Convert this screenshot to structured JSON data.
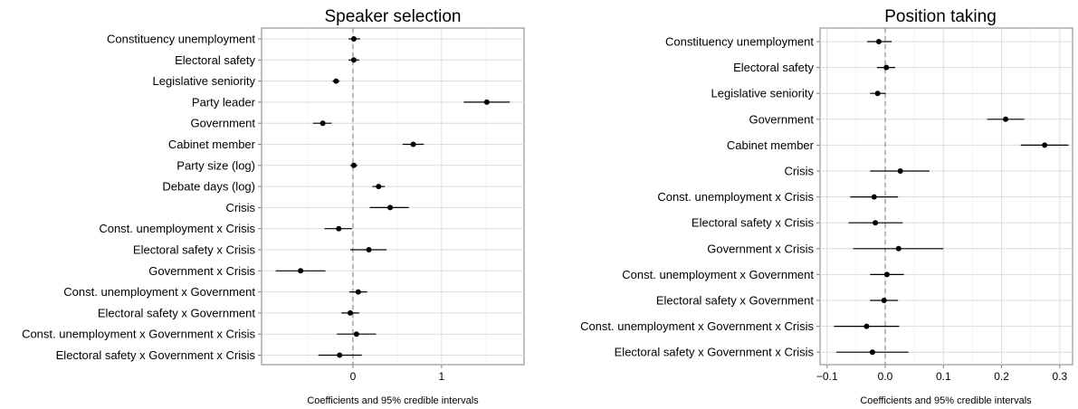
{
  "chart_data": [
    {
      "type": "scatter",
      "title": "Speaker selection",
      "xlabel": "Coefficients and 95% credible intervals",
      "ylabel": "",
      "xlim": [
        -1.03,
        1.93
      ],
      "xticks": [
        0,
        1
      ],
      "xtick_labels": [
        "0",
        "1"
      ],
      "reference_line": 0,
      "grid": true,
      "categories": [
        "Constituency unemployment",
        "Electoral safety",
        "Legislative seniority",
        "Party leader",
        "Government",
        "Cabinet member",
        "Party size (log)",
        "Debate days (log)",
        "Crisis",
        "Const. unemployment x Crisis",
        "Electoral safety x Crisis",
        "Government x Crisis",
        "Const. unemployment x Government",
        "Electoral safety x Government",
        "Const. unemployment x Government x Crisis",
        "Electoral safety x Government x Crisis"
      ],
      "estimates": [
        0.01,
        0.01,
        -0.19,
        1.51,
        -0.34,
        0.68,
        0.01,
        0.29,
        0.42,
        -0.16,
        0.18,
        -0.59,
        0.06,
        -0.03,
        0.04,
        -0.15
      ],
      "lower": [
        -0.05,
        -0.05,
        -0.23,
        1.25,
        -0.45,
        0.56,
        -0.03,
        0.22,
        0.19,
        -0.32,
        -0.03,
        -0.87,
        -0.04,
        -0.13,
        -0.18,
        -0.39
      ],
      "upper": [
        0.08,
        0.07,
        -0.15,
        1.77,
        -0.24,
        0.8,
        0.05,
        0.36,
        0.63,
        -0.01,
        0.38,
        -0.31,
        0.16,
        0.07,
        0.26,
        0.1
      ]
    },
    {
      "type": "scatter",
      "title": "Position taking",
      "xlabel": "Coefficients and 95% credible intervals",
      "ylabel": "",
      "xlim": [
        -0.112,
        0.322
      ],
      "xticks": [
        -0.1,
        0.0,
        0.1,
        0.2,
        0.3
      ],
      "xtick_labels": [
        "−0.1",
        "0.0",
        "0.1",
        "0.2",
        "0.3"
      ],
      "reference_line": 0,
      "grid": true,
      "categories": [
        "Constituency unemployment",
        "Electoral safety",
        "Legislative seniority",
        "Government",
        "Cabinet member",
        "Crisis",
        "Const. unemployment x Crisis",
        "Electoral safety x Crisis",
        "Government x Crisis",
        "Const. unemployment x Government",
        "Electoral safety x Government",
        "Const. unemployment x Government x Crisis",
        "Electoral safety x Government x Crisis"
      ],
      "estimates": [
        -0.011,
        0.002,
        -0.013,
        0.207,
        0.274,
        0.026,
        -0.019,
        -0.017,
        0.023,
        0.003,
        -0.002,
        -0.032,
        -0.022
      ],
      "lower": [
        -0.031,
        -0.014,
        -0.026,
        0.175,
        0.233,
        -0.026,
        -0.06,
        -0.063,
        -0.055,
        -0.026,
        -0.026,
        -0.088,
        -0.084
      ],
      "upper": [
        0.011,
        0.017,
        0.001,
        0.239,
        0.315,
        0.076,
        0.022,
        0.03,
        0.1,
        0.032,
        0.022,
        0.024,
        0.04
      ]
    }
  ]
}
